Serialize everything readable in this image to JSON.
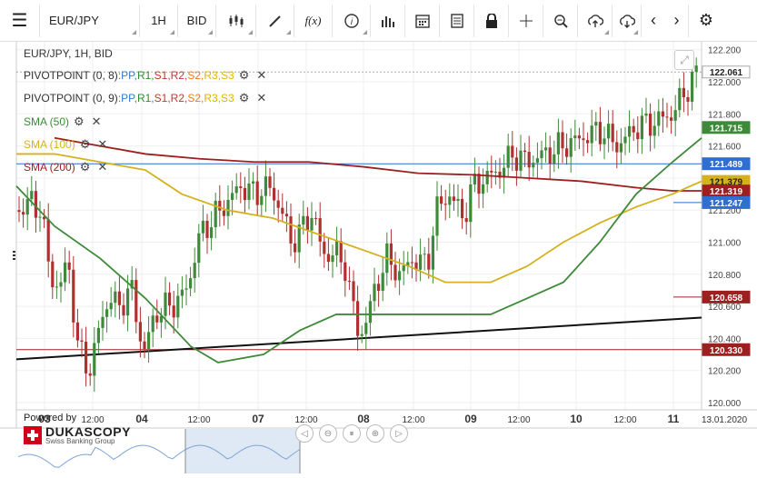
{
  "toolbar": {
    "symbol": "EUR/JPY",
    "timeframe": "1H",
    "side": "BID",
    "fx_label": "f(x)"
  },
  "chart": {
    "header": "EUR/JPY, 1H, BID",
    "indicators": [
      {
        "name": "PIVOTPOINT (0, 8)",
        "levels": [
          "PP",
          "R1",
          "S1",
          "R2",
          "S2",
          "R3",
          "S3"
        ]
      },
      {
        "name": "PIVOTPOINT (0, 9)",
        "levels": [
          "PP",
          "R1",
          "S1",
          "R2",
          "S2",
          "R3",
          "S3"
        ]
      },
      {
        "name": "SMA (50)",
        "color": "#3f8a3a"
      },
      {
        "name": "SMA (100)",
        "color": "#d4b21f"
      },
      {
        "name": "SMA (200)",
        "color": "#9c2020"
      }
    ],
    "level_colors": {
      "PP": "#2f7ad6",
      "R1": "#2e8b2e",
      "S1": "#c0392b",
      "R2": "#c0392b",
      "S2": "#e67e22",
      "R3": "#e2b400",
      "S3": "#e2b400"
    },
    "y_ticks": [
      "122.200",
      "122.000",
      "121.800",
      "121.600",
      "121.400",
      "121.200",
      "121.000",
      "120.800",
      "120.600",
      "120.400",
      "120.200",
      "120.000"
    ],
    "x_ticks": [
      "03",
      "12:00",
      "04",
      "12:00",
      "07",
      "12:00",
      "08",
      "12:00",
      "09",
      "12:00",
      "10",
      "12:00",
      "11",
      "13.01.2020"
    ],
    "price_tags": [
      {
        "label": "122.061",
        "bg": "#ffffff",
        "fg": "#222222"
      },
      {
        "label": "121.715",
        "bg": "#3f8a3a",
        "fg": "#ffffff"
      },
      {
        "label": "121.489",
        "bg": "#2f6fcf",
        "fg": "#ffffff"
      },
      {
        "label": "121.379",
        "bg": "#d4b21f",
        "fg": "#222222"
      },
      {
        "label": "121.319",
        "bg": "#9c2020",
        "fg": "#ffffff"
      },
      {
        "label": "121.247",
        "bg": "#2f6fcf",
        "fg": "#ffffff"
      },
      {
        "label": "120.658",
        "bg": "#9c2020",
        "fg": "#ffffff"
      },
      {
        "label": "120.330",
        "bg": "#9c2020",
        "fg": "#ffffff"
      }
    ],
    "horizontal_lines": [
      121.489,
      120.33
    ],
    "trendline": {
      "from": 120.27,
      "to": 120.53
    }
  },
  "branding": {
    "powered_by": "Powered by",
    "company": "DUKASCOPY",
    "tagline": "Swiss Banking Group"
  },
  "colors": {
    "up_candle": "#3f8a3a",
    "down_candle": "#b03030",
    "grid": "#efefef"
  }
}
